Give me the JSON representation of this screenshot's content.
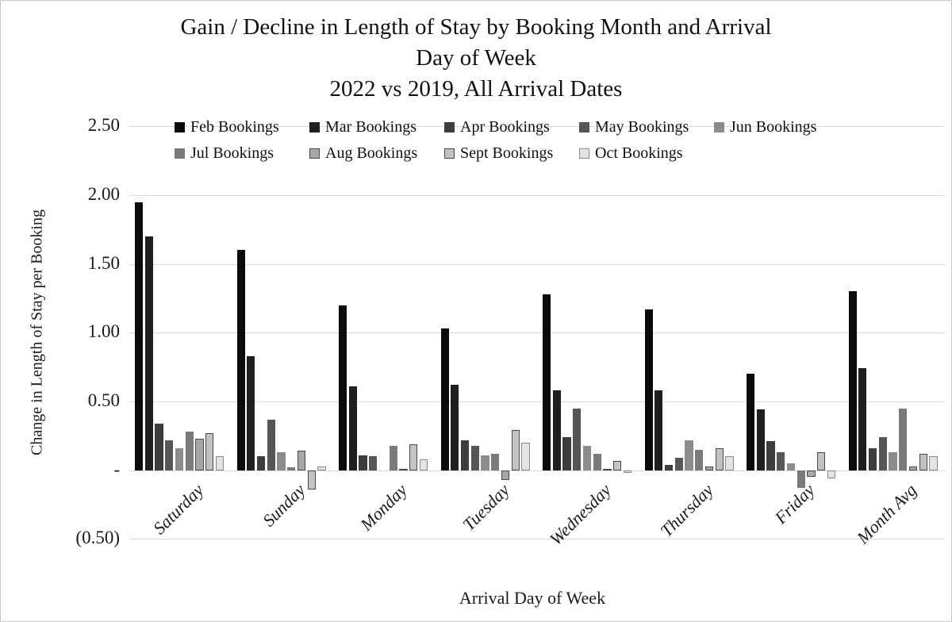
{
  "chart_data": {
    "type": "bar",
    "title_lines": [
      "Gain / Decline in Length of Stay by Booking Month and Arrival",
      "Day of Week",
      "2022 vs 2019, All Arrival Dates"
    ],
    "xlabel": "Arrival Day of Week",
    "ylabel": "Change in Length of Stay per Booking",
    "categories": [
      "Saturday",
      "Sunday",
      "Monday",
      "Tuesday",
      "Wednesday",
      "Thursday",
      "Friday",
      "Month Avg"
    ],
    "series": [
      {
        "name": "Feb Bookings",
        "color": "#0b0b0b",
        "border": null,
        "values": [
          1.95,
          1.6,
          1.2,
          1.03,
          1.28,
          1.17,
          0.7,
          1.3
        ]
      },
      {
        "name": "Mar Bookings",
        "color": "#1f1f1f",
        "border": null,
        "values": [
          1.7,
          0.83,
          0.61,
          0.62,
          0.58,
          0.58,
          0.44,
          0.74
        ]
      },
      {
        "name": "Apr Bookings",
        "color": "#3d3d3d",
        "border": null,
        "values": [
          0.34,
          0.1,
          0.11,
          0.22,
          0.24,
          0.04,
          0.21,
          0.16
        ]
      },
      {
        "name": "May Bookings",
        "color": "#565656",
        "border": null,
        "values": [
          0.22,
          0.37,
          0.1,
          0.18,
          0.45,
          0.09,
          0.13,
          0.24
        ]
      },
      {
        "name": "Jun Bookings",
        "color": "#8c8c8c",
        "border": null,
        "values": [
          0.16,
          0.13,
          0.0,
          0.11,
          0.18,
          0.22,
          0.05,
          0.13
        ]
      },
      {
        "name": "Jul Bookings",
        "color": "#7a7a7a",
        "border": null,
        "values": [
          0.28,
          0.02,
          0.18,
          0.12,
          0.12,
          0.15,
          -0.13,
          0.45
        ]
      },
      {
        "name": "Aug Bookings",
        "color": "#a6a6a6",
        "border": "#4a4a4a",
        "values": [
          0.23,
          0.14,
          0.01,
          -0.07,
          0.01,
          0.03,
          -0.05,
          0.03
        ]
      },
      {
        "name": "Sept Bookings",
        "color": "#c2c2c2",
        "border": "#4a4a4a",
        "values": [
          0.27,
          -0.14,
          0.19,
          0.29,
          0.07,
          0.16,
          0.13,
          0.12
        ]
      },
      {
        "name": "Oct Bookings",
        "color": "#e3e3e3",
        "border": "#8a8a8a",
        "values": [
          0.1,
          0.03,
          0.08,
          0.2,
          -0.02,
          0.1,
          -0.06,
          0.1
        ]
      }
    ],
    "y_ticks": [
      {
        "label": "2.50",
        "value": 2.5
      },
      {
        "label": "2.00",
        "value": 2.0
      },
      {
        "label": "1.50",
        "value": 1.5
      },
      {
        "label": "1.00",
        "value": 1.0
      },
      {
        "label": "0.50",
        "value": 0.5
      },
      {
        "label": "-",
        "value": 0.0
      },
      {
        "label": "(0.50)",
        "value": -0.5
      }
    ],
    "ylim": [
      -0.5,
      2.5
    ],
    "grid": true,
    "legend_position": "top",
    "gridline_color": "#d9d9d9"
  }
}
